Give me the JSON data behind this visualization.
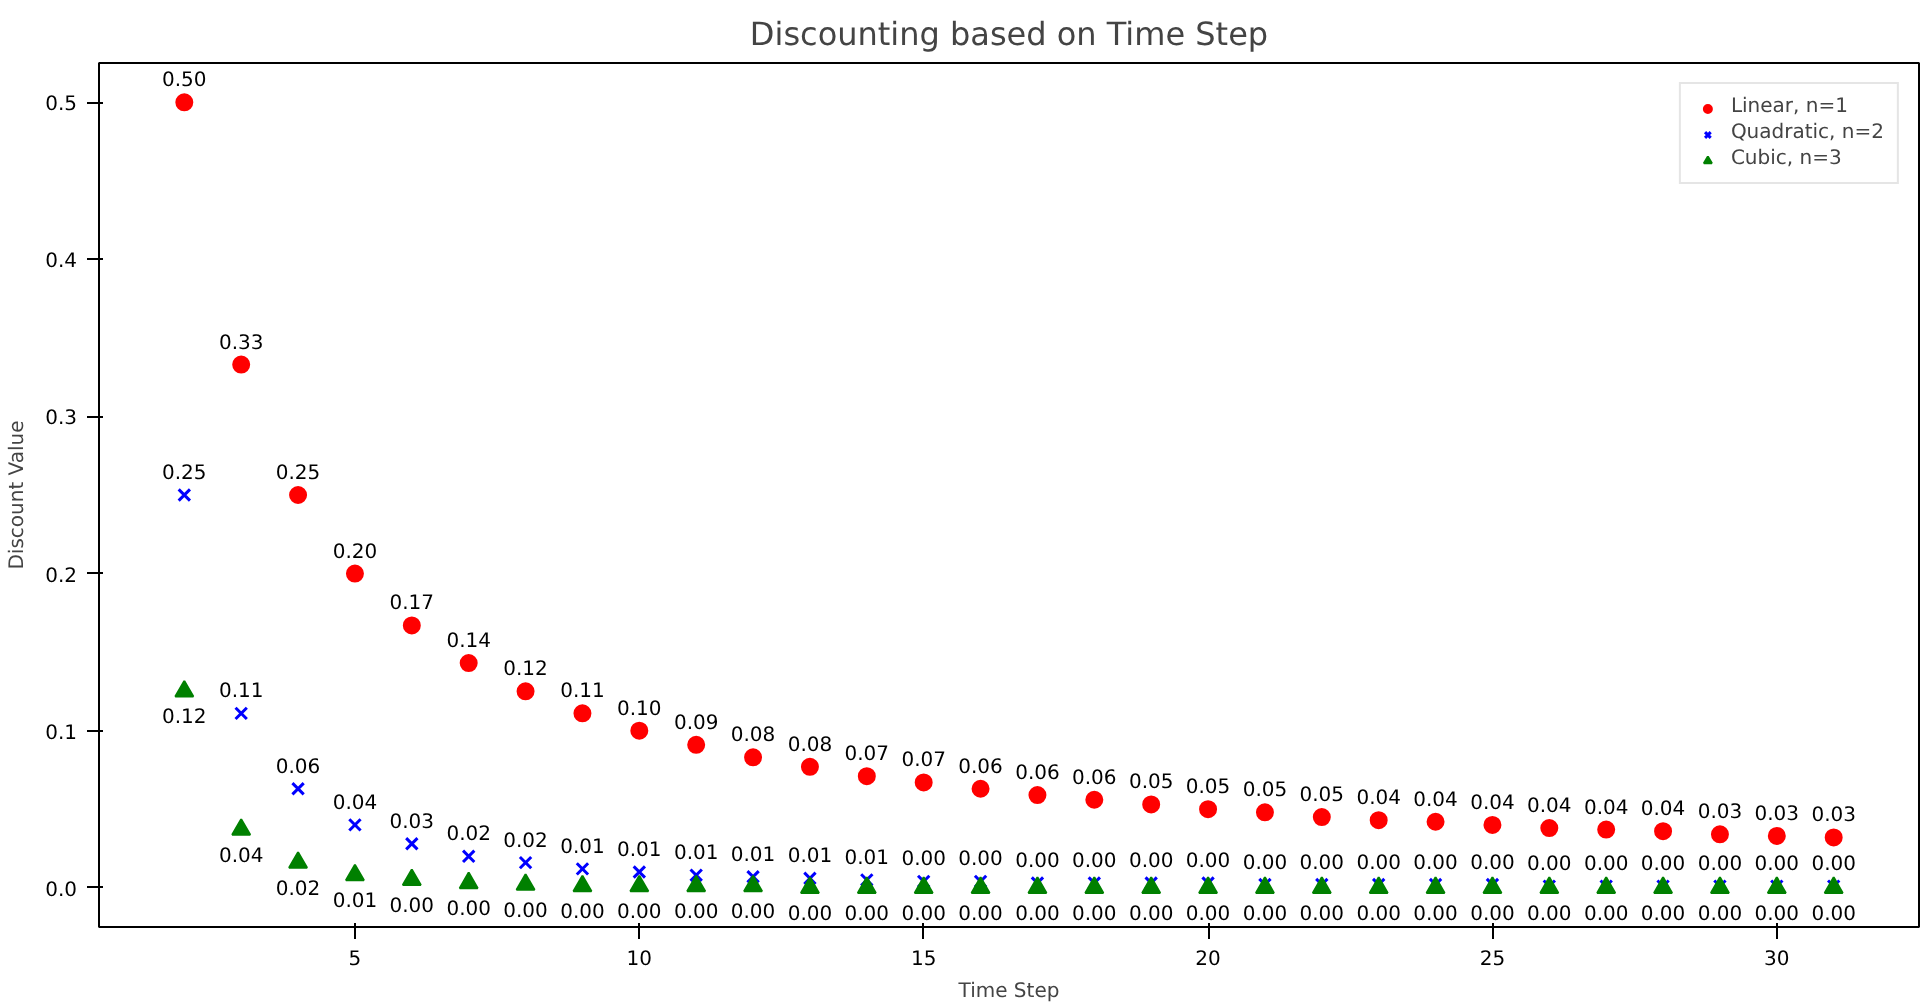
{
  "chart_data": {
    "type": "scatter",
    "title": "Discounting based on Time Step",
    "xlabel": "Time Step",
    "ylabel": "Discount Value",
    "x": [
      2,
      3,
      4,
      5,
      6,
      7,
      8,
      9,
      10,
      11,
      12,
      13,
      14,
      15,
      16,
      17,
      18,
      19,
      20,
      21,
      22,
      23,
      24,
      25,
      26,
      27,
      28,
      29,
      30,
      31
    ],
    "xlim": [
      0.5,
      32.5
    ],
    "xticks": [
      5,
      10,
      15,
      20,
      25,
      30
    ],
    "ylim": [
      -0.025,
      0.525
    ],
    "yticks": [
      {
        "value": 0,
        "label": "0.0"
      },
      {
        "value": 0.1,
        "label": "0.1"
      },
      {
        "value": 0.2,
        "label": "0.2"
      },
      {
        "value": 0.3,
        "label": "0.3"
      },
      {
        "value": 0.4,
        "label": "0.4"
      },
      {
        "value": 0.5,
        "label": "0.5"
      }
    ],
    "grid": false,
    "legend": "top right",
    "series": [
      {
        "name": "Linear, n=1",
        "color": "#ff0000",
        "marker": "circle",
        "values": [
          0.5,
          0.333,
          0.25,
          0.2,
          0.167,
          0.143,
          0.125,
          0.111,
          0.1,
          0.091,
          0.083,
          0.077,
          0.071,
          0.067,
          0.063,
          0.059,
          0.056,
          0.053,
          0.05,
          0.048,
          0.045,
          0.043,
          0.042,
          0.04,
          0.038,
          0.037,
          0.036,
          0.034,
          0.033,
          0.032
        ],
        "value_labels": [
          "0.50",
          "0.33",
          "0.25",
          "0.20",
          "0.17",
          "0.14",
          "0.12",
          "0.11",
          "0.10",
          "0.09",
          "0.08",
          "0.08",
          "0.07",
          "0.07",
          "0.06",
          "0.06",
          "0.06",
          "0.05",
          "0.05",
          "0.05",
          "0.05",
          "0.04",
          "0.04",
          "0.04",
          "0.04",
          "0.04",
          "0.04",
          "0.03",
          "0.03",
          "0.03"
        ]
      },
      {
        "name": "Quadratic, n=2",
        "color": "#0000ff",
        "marker": "cross",
        "values": [
          0.25,
          0.111,
          0.063,
          0.04,
          0.028,
          0.02,
          0.016,
          0.012,
          0.01,
          0.008,
          0.007,
          0.006,
          0.005,
          0.004,
          0.004,
          0.003,
          0.003,
          0.003,
          0.003,
          0.002,
          0.002,
          0.002,
          0.002,
          0.002,
          0.001,
          0.001,
          0.001,
          0.001,
          0.001,
          0.001
        ],
        "value_labels": [
          "0.25",
          "0.11",
          "0.06",
          "0.04",
          "0.03",
          "0.02",
          "0.02",
          "0.01",
          "0.01",
          "0.01",
          "0.01",
          "0.01",
          "0.01",
          "0.00",
          "0.00",
          "0.00",
          "0.00",
          "0.00",
          "0.00",
          "0.00",
          "0.00",
          "0.00",
          "0.00",
          "0.00",
          "0.00",
          "0.00",
          "0.00",
          "0.00",
          "0.00",
          "0.00"
        ]
      },
      {
        "name": "Cubic, n=3",
        "color": "#008000",
        "marker": "triangle",
        "values": [
          0.125,
          0.037,
          0.016,
          0.008,
          0.005,
          0.003,
          0.002,
          0.001,
          0.001,
          0.001,
          0.001,
          0,
          0,
          0,
          0,
          0,
          0,
          0,
          0,
          0,
          0,
          0,
          0,
          0,
          0,
          0,
          0,
          0,
          0,
          0
        ],
        "value_labels": [
          "0.12",
          "0.04",
          "0.02",
          "0.01",
          "0.00",
          "0.00",
          "0.00",
          "0.00",
          "0.00",
          "0.00",
          "0.00",
          "0.00",
          "0.00",
          "0.00",
          "0.00",
          "0.00",
          "0.00",
          "0.00",
          "0.00",
          "0.00",
          "0.00",
          "0.00",
          "0.00",
          "0.00",
          "0.00",
          "0.00",
          "0.00",
          "0.00",
          "0.00",
          "0.00"
        ]
      }
    ]
  }
}
